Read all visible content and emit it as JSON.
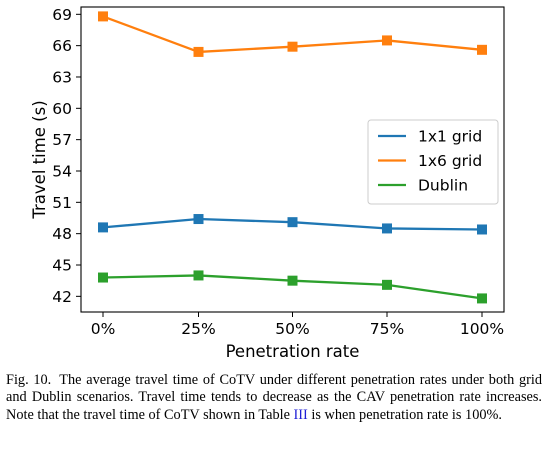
{
  "chart_data": {
    "type": "line",
    "categories": [
      "0%",
      "25%",
      "50%",
      "75%",
      "100%"
    ],
    "xlabel": "Penetration rate",
    "ylabel": "Travel time (s)",
    "ylim": [
      40.5,
      69.7
    ],
    "yticks": [
      42,
      45,
      48,
      51,
      54,
      57,
      60,
      63,
      66,
      69
    ],
    "grid": false,
    "legend_position": "center-right",
    "marker": "square",
    "series": [
      {
        "name": "1x1 grid",
        "color": "#1f77b4",
        "values": [
          48.6,
          49.4,
          49.1,
          48.5,
          48.4
        ]
      },
      {
        "name": "1x6 grid",
        "color": "#ff7f0e",
        "values": [
          68.8,
          65.4,
          65.9,
          66.5,
          65.6
        ]
      },
      {
        "name": "Dublin",
        "color": "#2ca02c",
        "values": [
          43.8,
          44.0,
          43.5,
          43.1,
          41.8
        ]
      }
    ]
  },
  "caption": {
    "label": "Fig. 10.",
    "text_before_ref": "The average travel time of CoTV under different penetration rates under both grid and Dublin scenarios. Travel time tends to decrease as the CAV penetration rate increases. Note that the travel time of CoTV shown in Table ",
    "ref": "III",
    "text_after_ref": " is when penetration rate is 100%."
  }
}
